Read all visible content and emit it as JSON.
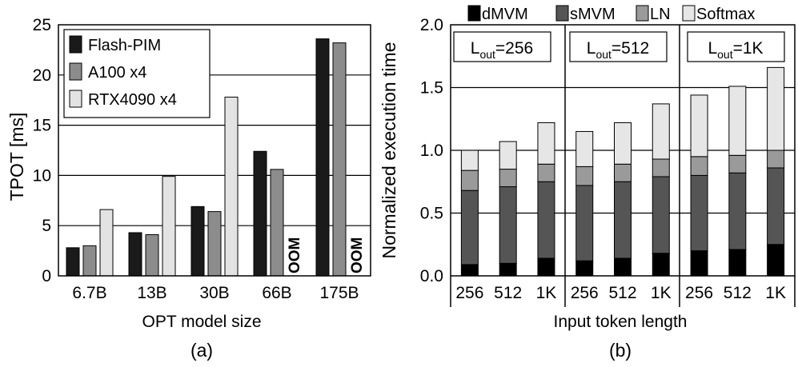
{
  "colors": {
    "flash_pim": "#1a1a1a",
    "a100": "#8c8c8c",
    "rtx4090": "#e3e3e3",
    "dMVM": "#000000",
    "sMVM": "#555555",
    "LN": "#9a9a9a",
    "Softmax": "#e6e6e6"
  },
  "chart_data": [
    {
      "id": "a",
      "type": "bar",
      "caption": "(a)",
      "xlabel": "OPT model size",
      "ylabel": "TPOT [ms]",
      "ylim": [
        0,
        25
      ],
      "yticks": [
        "0",
        "5",
        "10",
        "15",
        "20",
        "25"
      ],
      "categories": [
        "6.7B",
        "13B",
        "30B",
        "66B",
        "175B"
      ],
      "legend_position": "top-left",
      "series": [
        {
          "name": "Flash-PIM",
          "values": [
            2.8,
            4.3,
            6.9,
            12.4,
            23.6
          ]
        },
        {
          "name": "A100 x4",
          "values": [
            3.0,
            4.1,
            6.4,
            10.6,
            23.2
          ]
        },
        {
          "name": "RTX4090 x4",
          "values": [
            6.6,
            9.9,
            17.8,
            null,
            null
          ]
        }
      ],
      "annotations": [
        {
          "text": "OOM",
          "category": "66B",
          "series": "RTX4090 x4"
        },
        {
          "text": "OOM",
          "category": "175B",
          "series": "RTX4090 x4"
        }
      ]
    },
    {
      "id": "b",
      "type": "bar",
      "stacked": true,
      "caption": "(b)",
      "xlabel": "Input token length",
      "ylabel": "Normalized execution time",
      "ylim": [
        0,
        2.0
      ],
      "yticks": [
        "0.0",
        "0.5",
        "1.0",
        "1.5",
        "2.0"
      ],
      "legend_position": "top",
      "legend": [
        "dMVM",
        "sMVM",
        "LN",
        "Softmax"
      ],
      "groups": [
        {
          "label_main": "L",
          "label_sub": "out",
          "label_value": "=256",
          "categories": [
            "256",
            "512",
            "1K"
          ]
        },
        {
          "label_main": "L",
          "label_sub": "out",
          "label_value": "=512",
          "categories": [
            "256",
            "512",
            "1K"
          ]
        },
        {
          "label_main": "L",
          "label_sub": "out",
          "label_value": "=1K",
          "categories": [
            "256",
            "512",
            "1K"
          ]
        }
      ],
      "series": [
        {
          "name": "dMVM",
          "values": [
            0.09,
            0.1,
            0.14,
            0.12,
            0.14,
            0.18,
            0.2,
            0.21,
            0.25
          ]
        },
        {
          "name": "sMVM",
          "values": [
            0.59,
            0.61,
            0.61,
            0.6,
            0.61,
            0.61,
            0.6,
            0.61,
            0.61
          ]
        },
        {
          "name": "LN",
          "values": [
            0.16,
            0.14,
            0.14,
            0.15,
            0.14,
            0.14,
            0.15,
            0.14,
            0.14
          ]
        },
        {
          "name": "Softmax",
          "values": [
            0.16,
            0.22,
            0.33,
            0.28,
            0.33,
            0.44,
            0.49,
            0.55,
            0.66
          ]
        }
      ]
    }
  ]
}
